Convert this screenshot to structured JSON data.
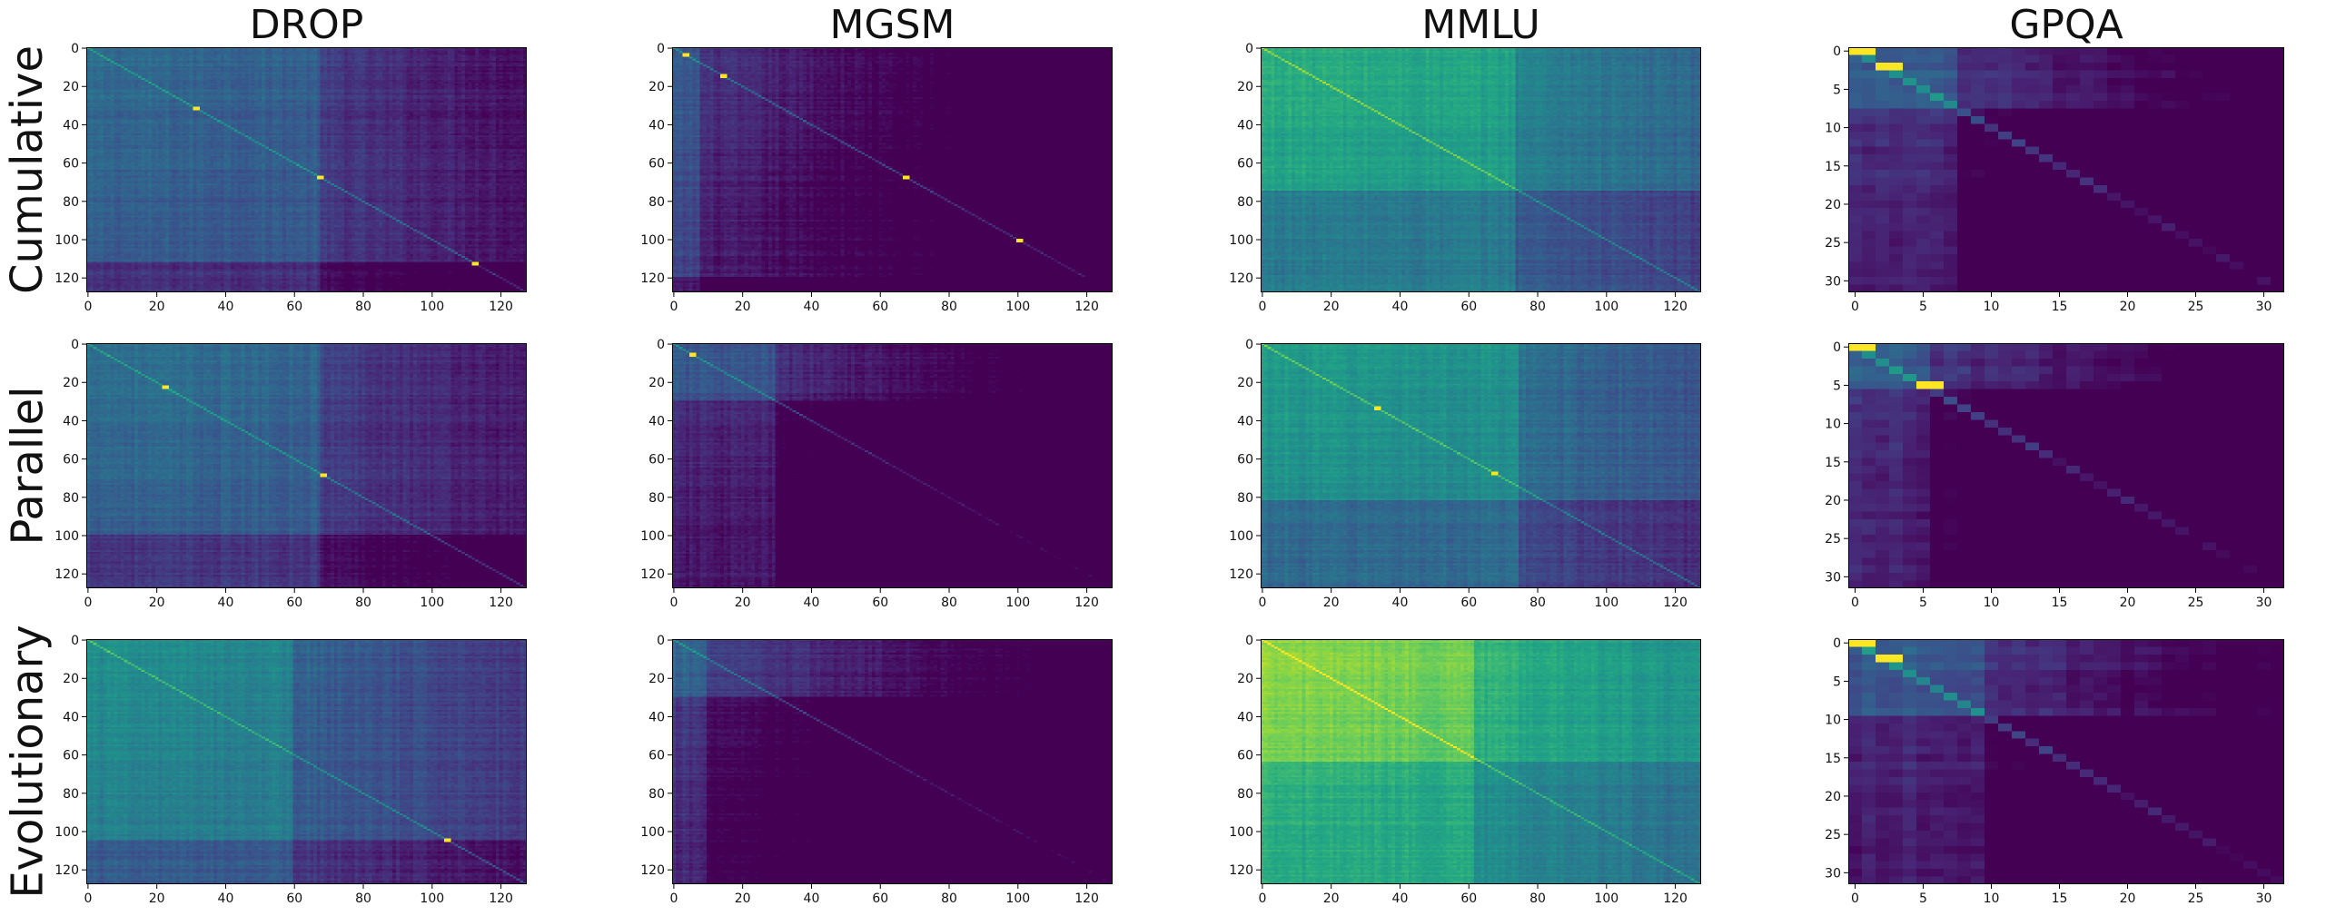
{
  "column_titles": [
    "DROP",
    "MGSM",
    "MMLU",
    "GPQA"
  ],
  "row_labels": [
    "Cumulative",
    "Parallel",
    "Evolutionary"
  ],
  "colormap": "viridis",
  "chart_data": [
    {
      "type": "heatmap",
      "row": "Cumulative",
      "column": "DROP",
      "size": 128,
      "xticks": [
        0,
        20,
        40,
        60,
        80,
        100,
        120
      ],
      "yticks": [
        0,
        20,
        40,
        60,
        80,
        100,
        120
      ],
      "base_level": 0.28,
      "left_bright_cols": 68,
      "bottom_dark_rows": 112,
      "diagonal": "bright line",
      "hotspots": [
        [
          31,
          31
        ],
        [
          67,
          67
        ],
        [
          112,
          112
        ]
      ]
    },
    {
      "type": "heatmap",
      "row": "Cumulative",
      "column": "MGSM",
      "size": 128,
      "xticks": [
        0,
        20,
        40,
        60,
        80,
        100,
        120
      ],
      "yticks": [
        0,
        20,
        40,
        60,
        80,
        100,
        120
      ],
      "base_level": 0.2,
      "left_bright_cols": 8,
      "bottom_dark_rows": 120,
      "diagonal": "bright line",
      "hotspots": [
        [
          3,
          3
        ],
        [
          14,
          14
        ],
        [
          67,
          67
        ],
        [
          100,
          100
        ]
      ]
    },
    {
      "type": "heatmap",
      "row": "Cumulative",
      "column": "MMLU",
      "size": 128,
      "xticks": [
        0,
        20,
        40,
        60,
        80,
        100,
        120
      ],
      "yticks": [
        0,
        20,
        40,
        60,
        80,
        100,
        120
      ],
      "base_level": 0.55,
      "left_bright_cols": 74,
      "bottom_dark_rows": 75,
      "diagonal": "bright line",
      "hotspots": []
    },
    {
      "type": "heatmap",
      "row": "Cumulative",
      "column": "GPQA",
      "size": 32,
      "xticks": [
        0,
        5,
        10,
        15,
        20,
        25,
        30
      ],
      "yticks": [
        0,
        5,
        10,
        15,
        20,
        25,
        30
      ],
      "base_level": 0.22,
      "left_bright_cols": 8,
      "bottom_dark_rows": 8,
      "diagonal": "bright line",
      "hotspots": [
        [
          0,
          0
        ],
        [
          2,
          2
        ]
      ]
    },
    {
      "type": "heatmap",
      "row": "Parallel",
      "column": "DROP",
      "size": 128,
      "xticks": [
        0,
        20,
        40,
        60,
        80,
        100,
        120
      ],
      "yticks": [
        0,
        20,
        40,
        60,
        80,
        100,
        120
      ],
      "base_level": 0.3,
      "left_bright_cols": 68,
      "bottom_dark_rows": 100,
      "diagonal": "bright line",
      "hotspots": [
        [
          22,
          22
        ],
        [
          68,
          68
        ]
      ]
    },
    {
      "type": "heatmap",
      "row": "Parallel",
      "column": "MGSM",
      "size": 128,
      "xticks": [
        0,
        20,
        40,
        60,
        80,
        100,
        120
      ],
      "yticks": [
        0,
        20,
        40,
        60,
        80,
        100,
        120
      ],
      "base_level": 0.2,
      "left_bright_cols": 30,
      "bottom_dark_rows": 30,
      "diagonal": "bright line",
      "hotspots": [
        [
          5,
          5
        ]
      ]
    },
    {
      "type": "heatmap",
      "row": "Parallel",
      "column": "MMLU",
      "size": 128,
      "xticks": [
        0,
        20,
        40,
        60,
        80,
        100,
        120
      ],
      "yticks": [
        0,
        20,
        40,
        60,
        80,
        100,
        120
      ],
      "base_level": 0.48,
      "left_bright_cols": 75,
      "bottom_dark_rows": 82,
      "diagonal": "bright line",
      "hotspots": [
        [
          33,
          33
        ],
        [
          67,
          67
        ]
      ]
    },
    {
      "type": "heatmap",
      "row": "Parallel",
      "column": "GPQA",
      "size": 32,
      "xticks": [
        0,
        5,
        10,
        15,
        20,
        25,
        30
      ],
      "yticks": [
        0,
        5,
        10,
        15,
        20,
        25,
        30
      ],
      "base_level": 0.22,
      "left_bright_cols": 6,
      "bottom_dark_rows": 6,
      "diagonal": "bright line",
      "hotspots": [
        [
          0,
          0
        ],
        [
          5,
          5
        ]
      ]
    },
    {
      "type": "heatmap",
      "row": "Evolutionary",
      "column": "DROP",
      "size": 128,
      "xticks": [
        0,
        20,
        40,
        60,
        80,
        100,
        120
      ],
      "yticks": [
        0,
        20,
        40,
        60,
        80,
        100,
        120
      ],
      "base_level": 0.42,
      "left_bright_cols": 60,
      "bottom_dark_rows": 105,
      "diagonal": "bright line",
      "hotspots": [
        [
          104,
          104
        ]
      ]
    },
    {
      "type": "heatmap",
      "row": "Evolutionary",
      "column": "MGSM",
      "size": 128,
      "xticks": [
        0,
        20,
        40,
        60,
        80,
        100,
        120
      ],
      "yticks": [
        0,
        20,
        40,
        60,
        80,
        100,
        120
      ],
      "base_level": 0.25,
      "left_bright_cols": 10,
      "bottom_dark_rows": 30,
      "diagonal": "bright line",
      "hotspots": []
    },
    {
      "type": "heatmap",
      "row": "Evolutionary",
      "column": "MMLU",
      "size": 128,
      "xticks": [
        0,
        20,
        40,
        60,
        80,
        100,
        120
      ],
      "yticks": [
        0,
        20,
        40,
        60,
        80,
        100,
        120
      ],
      "base_level": 0.75,
      "left_bright_cols": 62,
      "bottom_dark_rows": 64,
      "diagonal": "bright line",
      "hotspots": []
    },
    {
      "type": "heatmap",
      "row": "Evolutionary",
      "column": "GPQA",
      "size": 32,
      "xticks": [
        0,
        5,
        10,
        15,
        20,
        25,
        30
      ],
      "yticks": [
        0,
        5,
        10,
        15,
        20,
        25,
        30
      ],
      "base_level": 0.22,
      "left_bright_cols": 10,
      "bottom_dark_rows": 10,
      "diagonal": "bright line",
      "hotspots": [
        [
          0,
          0
        ],
        [
          2,
          2
        ]
      ]
    }
  ]
}
